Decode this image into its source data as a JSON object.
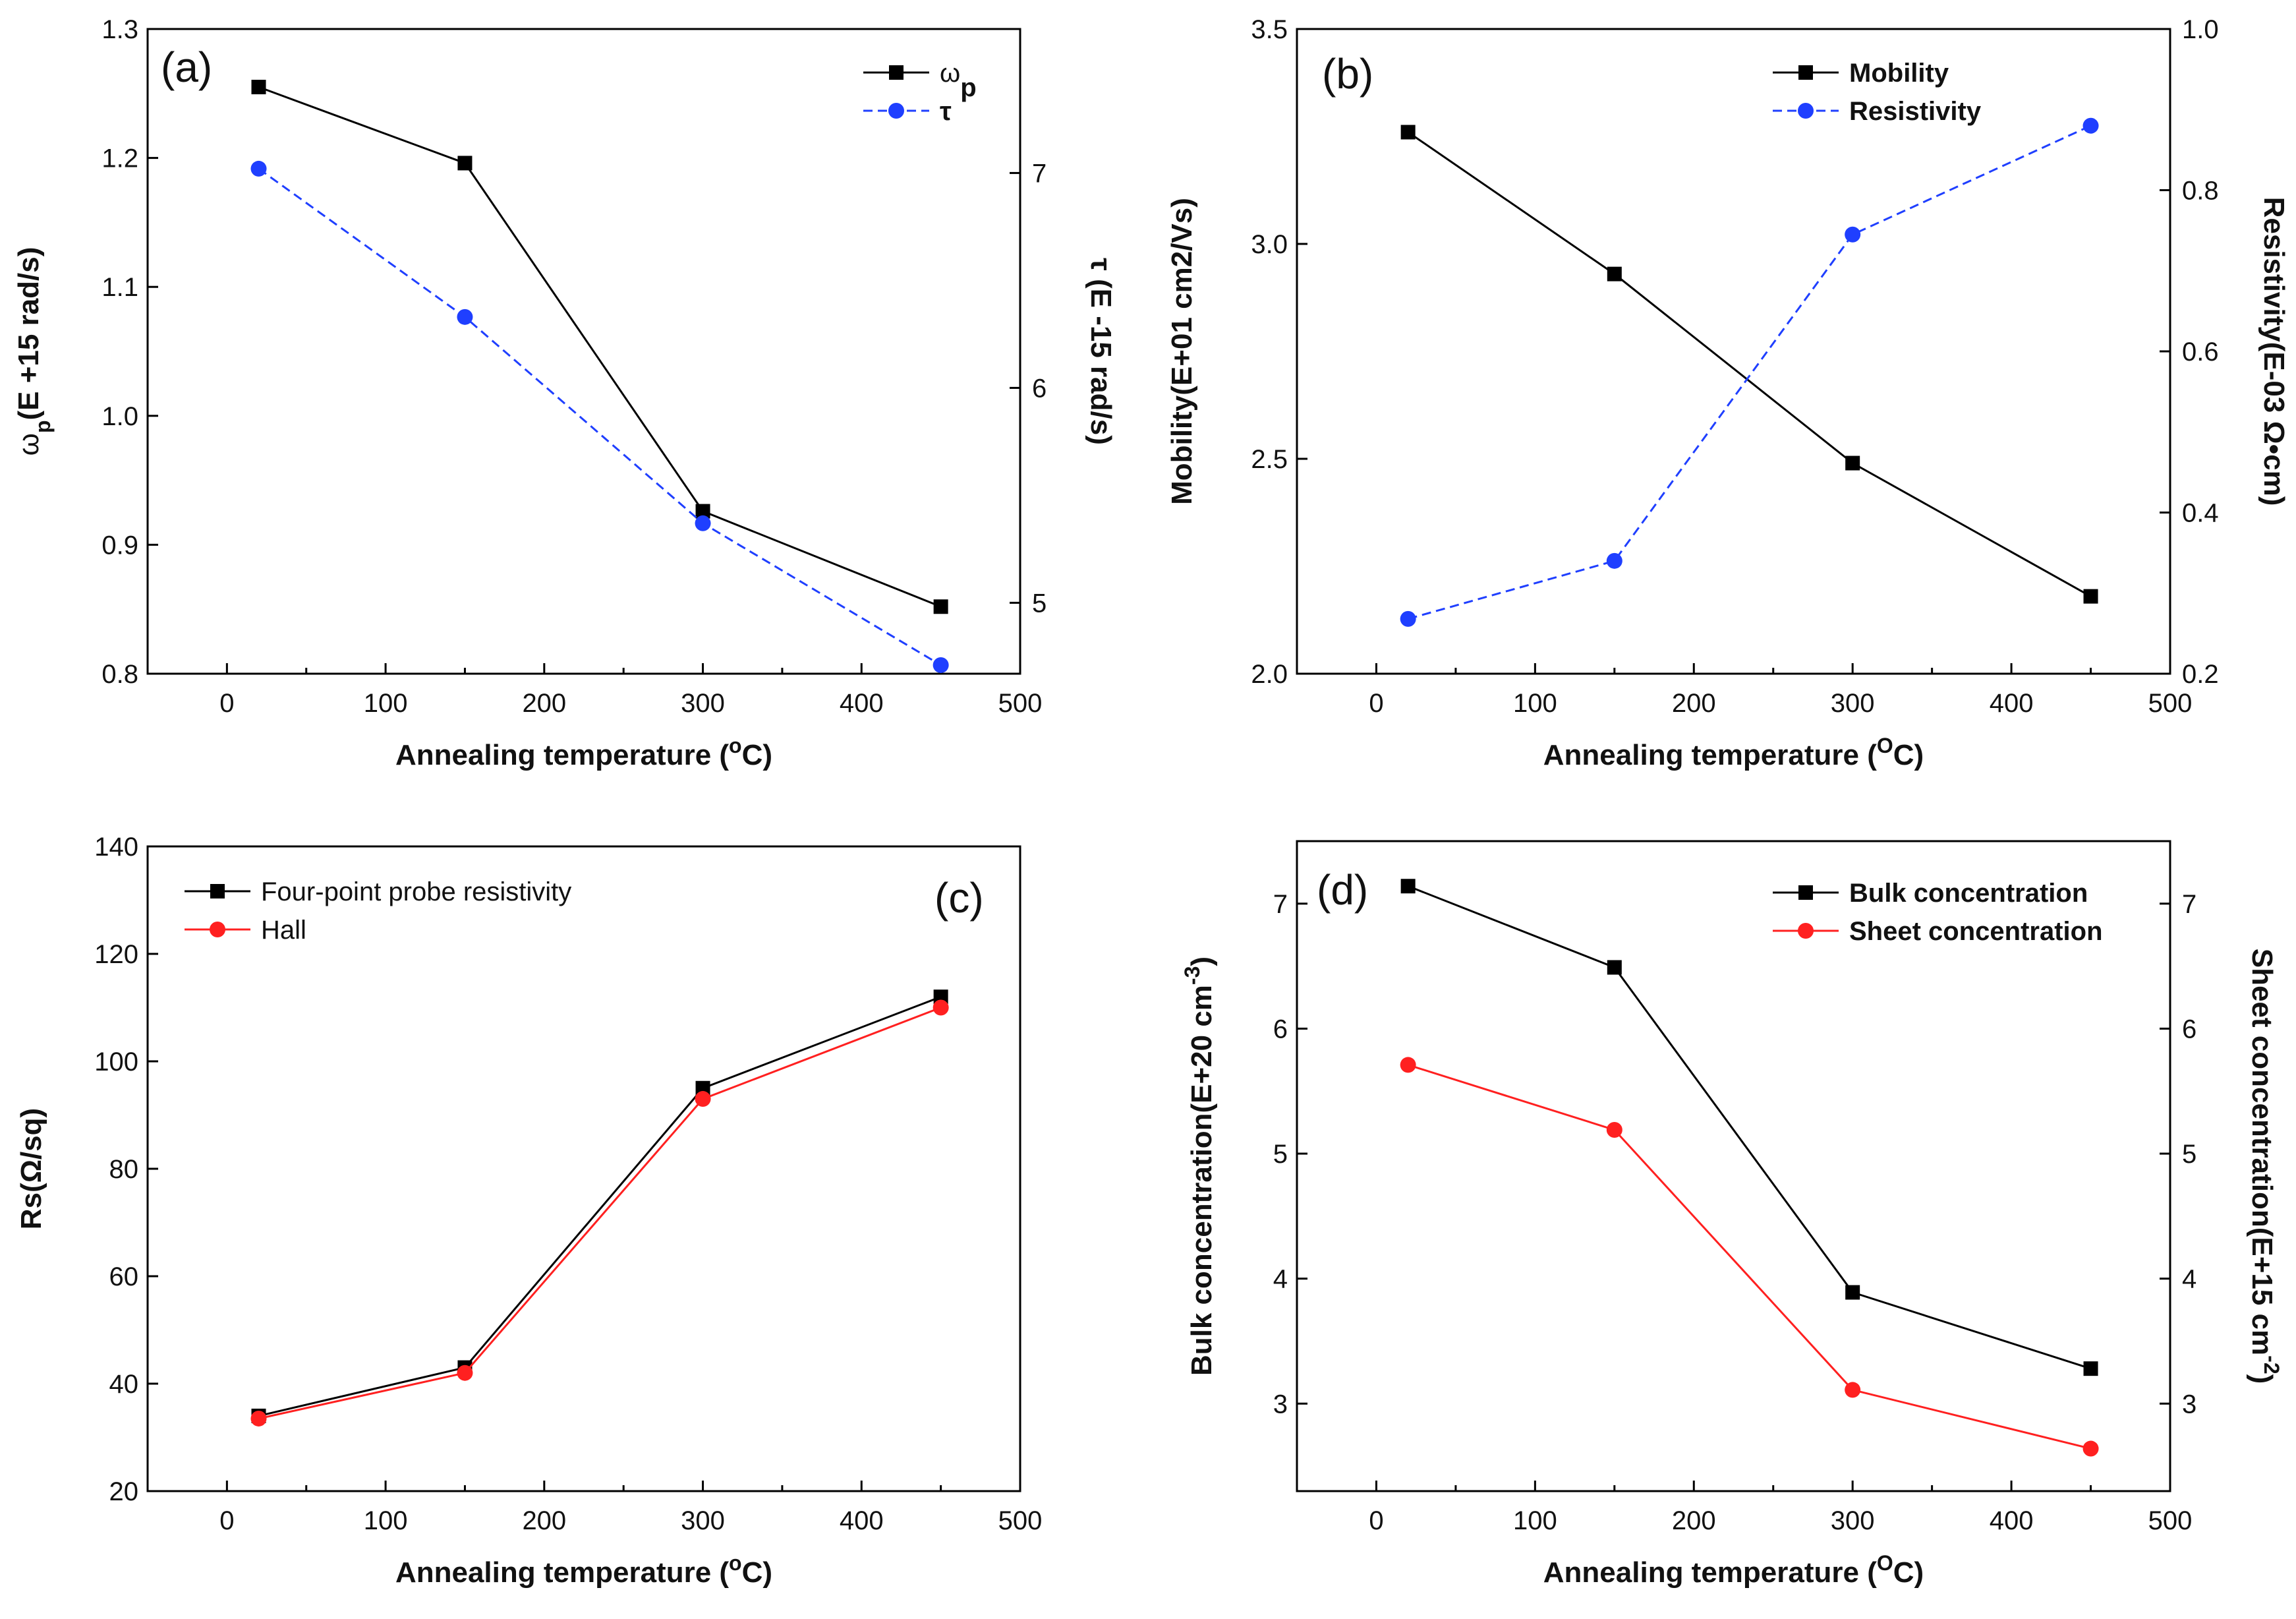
{
  "figure": {
    "panels": [
      {
        "id": "a",
        "tag": "(a)"
      },
      {
        "id": "b",
        "tag": "(b)"
      },
      {
        "id": "c",
        "tag": "(c)"
      },
      {
        "id": "d",
        "tag": "(d)"
      }
    ]
  },
  "chart_data": [
    {
      "panel": "(a)",
      "type": "line",
      "x": [
        20,
        150,
        300,
        450
      ],
      "xlabel": "Annealing temperature (°C)",
      "xlim": [
        -50,
        500
      ],
      "xticks": [
        "0",
        "100",
        "200",
        "300",
        "400",
        "500"
      ],
      "ylabel": "ωp(E +15 rad/s)",
      "ylim": [
        0.8,
        1.3
      ],
      "yticks": [
        "0.8",
        "0.9",
        "1.0",
        "1.1",
        "1.2",
        "1.3"
      ],
      "y2label": "τ (E -15 rad/s)",
      "y2lim": [
        4.67,
        7.67
      ],
      "y2ticks": [
        "5",
        "6",
        "7"
      ],
      "series": [
        {
          "name": "ωp",
          "axis": "left",
          "values": [
            1.255,
            1.196,
            0.926,
            0.852
          ],
          "color": "#000000",
          "marker": "square",
          "dash": false
        },
        {
          "name": "τ",
          "axis": "right",
          "values": [
            7.02,
            6.33,
            5.37,
            4.71
          ],
          "color": "#1f3fff",
          "marker": "circle",
          "dash": true
        }
      ],
      "legend": "top-right"
    },
    {
      "panel": "(b)",
      "type": "line",
      "x": [
        20,
        150,
        300,
        450
      ],
      "xlabel": "Annealing temperature (OC)",
      "xlim": [
        -50,
        500
      ],
      "xticks": [
        "0",
        "100",
        "200",
        "300",
        "400",
        "500"
      ],
      "ylabel": "Mobility(E+01 cm2/Vs)",
      "ylim": [
        2.0,
        3.5
      ],
      "yticks": [
        "2.0",
        "2.5",
        "3.0",
        "3.5"
      ],
      "y2label": "Resistivity(E-03 Ω•cm)",
      "y2lim": [
        0.2,
        1.0
      ],
      "y2ticks": [
        "0.2",
        "0.4",
        "0.6",
        "0.8",
        "1.0"
      ],
      "series": [
        {
          "name": "Mobility",
          "axis": "left",
          "values": [
            3.26,
            2.93,
            2.49,
            2.18
          ],
          "color": "#000000",
          "marker": "square",
          "dash": false
        },
        {
          "name": "Resistivity",
          "axis": "right",
          "values": [
            0.268,
            0.34,
            0.745,
            0.88
          ],
          "color": "#1f3fff",
          "marker": "circle",
          "dash": true
        }
      ],
      "legend": "top-right"
    },
    {
      "panel": "(c)",
      "type": "line",
      "x": [
        20,
        150,
        300,
        450
      ],
      "xlabel": "Annealing temperature (°C)",
      "xlim": [
        -50,
        500
      ],
      "xticks": [
        "0",
        "100",
        "200",
        "300",
        "400",
        "500"
      ],
      "ylabel": "Rs(Ω/sq)",
      "ylim": [
        20,
        140
      ],
      "yticks": [
        "20",
        "40",
        "60",
        "80",
        "100",
        "120",
        "140"
      ],
      "series": [
        {
          "name": "Four-point probe resistivity",
          "axis": "left",
          "values": [
            34,
            43,
            95,
            112
          ],
          "color": "#000000",
          "marker": "square",
          "dash": false
        },
        {
          "name": "Hall",
          "axis": "left",
          "values": [
            33.5,
            42,
            93,
            110
          ],
          "color": "#ff2020",
          "marker": "circle",
          "dash": false
        }
      ],
      "legend": "top-left"
    },
    {
      "panel": "(d)",
      "type": "line",
      "x": [
        20,
        150,
        300,
        450
      ],
      "xlabel": "Annealing temperature (OC)",
      "xlim": [
        -50,
        500
      ],
      "xticks": [
        "0",
        "100",
        "200",
        "300",
        "400",
        "500"
      ],
      "ylabel": "Bulk concentration(E+20 cm-3)",
      "ylim": [
        2.3,
        7.5
      ],
      "yticks": [
        "3",
        "4",
        "5",
        "6",
        "7"
      ],
      "y2label": "Sheet concentration(E+15 cm-2)",
      "y2lim": [
        2.3,
        7.5
      ],
      "y2ticks": [
        "3",
        "4",
        "5",
        "6",
        "7"
      ],
      "series": [
        {
          "name": "Bulk concentration",
          "axis": "left",
          "values": [
            7.14,
            6.49,
            3.89,
            3.28
          ],
          "color": "#000000",
          "marker": "square",
          "dash": false
        },
        {
          "name": "Sheet concentration",
          "axis": "right",
          "values": [
            5.71,
            5.19,
            3.11,
            2.64
          ],
          "color": "#ff2020",
          "marker": "circle",
          "dash": false
        }
      ],
      "legend": "top-right"
    }
  ]
}
